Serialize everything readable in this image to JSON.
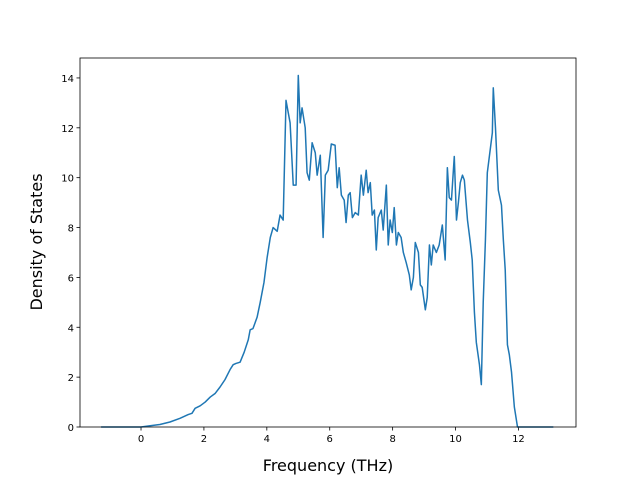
{
  "chart_data": {
    "type": "line",
    "xlabel": "Frequency (THz)",
    "ylabel": "Density of States",
    "x": [
      -1.27,
      0,
      0.29,
      0.6,
      0.92,
      1.24,
      1.5,
      1.62,
      1.72,
      1.88,
      2.04,
      2.2,
      2.36,
      2.51,
      2.67,
      2.83,
      2.93,
      3.02,
      3.15,
      3.28,
      3.41,
      3.47,
      3.56,
      3.69,
      3.79,
      3.91,
      4.01,
      4.11,
      4.2,
      4.33,
      4.42,
      4.52,
      4.61,
      4.74,
      4.84,
      4.93,
      5.0,
      5.06,
      5.12,
      5.22,
      5.28,
      5.35,
      5.44,
      5.54,
      5.6,
      5.7,
      5.79,
      5.86,
      5.95,
      6.05,
      6.17,
      6.24,
      6.3,
      6.37,
      6.46,
      6.52,
      6.59,
      6.65,
      6.72,
      6.81,
      6.91,
      7.0,
      7.07,
      7.16,
      7.22,
      7.29,
      7.35,
      7.42,
      7.48,
      7.54,
      7.64,
      7.7,
      7.8,
      7.86,
      7.92,
      7.99,
      8.05,
      8.12,
      8.18,
      8.27,
      8.34,
      8.43,
      8.53,
      8.59,
      8.66,
      8.72,
      8.82,
      8.88,
      8.94,
      9.04,
      9.1,
      9.17,
      9.23,
      9.29,
      9.39,
      9.48,
      9.58,
      9.67,
      9.74,
      9.8,
      9.87,
      9.96,
      10.03,
      10.09,
      10.15,
      10.22,
      10.28,
      10.38,
      10.47,
      10.53,
      10.6,
      10.66,
      10.76,
      10.82,
      10.88,
      10.95,
      11.01,
      11.11,
      11.17,
      11.2,
      11.27,
      11.36,
      11.46,
      11.52,
      11.58,
      11.65,
      11.71,
      11.78,
      11.87,
      11.97,
      13.11
    ],
    "series": [
      {
        "color": "#1f77b4",
        "values": [
          0,
          0,
          0.05,
          0.1,
          0.2,
          0.35,
          0.5,
          0.55,
          0.75,
          0.85,
          1.0,
          1.2,
          1.35,
          1.6,
          1.9,
          2.3,
          2.5,
          2.55,
          2.6,
          3.0,
          3.5,
          3.9,
          3.95,
          4.4,
          5.0,
          5.8,
          6.8,
          7.6,
          8.0,
          7.85,
          8.5,
          8.3,
          13.1,
          12.2,
          9.7,
          9.7,
          14.1,
          12.2,
          12.8,
          12.0,
          10.2,
          9.9,
          11.4,
          11.0,
          10.1,
          10.9,
          7.6,
          10.1,
          10.3,
          11.35,
          11.3,
          9.6,
          10.4,
          9.3,
          9.1,
          8.2,
          9.3,
          9.4,
          8.4,
          8.6,
          8.5,
          10.1,
          9.3,
          10.3,
          9.4,
          9.8,
          8.5,
          8.7,
          7.1,
          8.4,
          8.7,
          7.9,
          9.7,
          7.3,
          8.3,
          7.8,
          8.8,
          7.3,
          7.8,
          7.6,
          7.0,
          6.6,
          6.1,
          5.5,
          6.0,
          7.4,
          7.0,
          5.7,
          5.6,
          4.7,
          5.2,
          7.3,
          6.5,
          7.3,
          7.0,
          7.3,
          8.1,
          6.7,
          10.4,
          9.2,
          9.1,
          10.85,
          8.3,
          9.0,
          9.8,
          10.1,
          9.9,
          8.3,
          7.4,
          6.7,
          4.6,
          3.4,
          2.5,
          1.7,
          5.0,
          7.5,
          10.2,
          11.2,
          11.8,
          13.6,
          12.0,
          9.5,
          8.9,
          7.5,
          6.3,
          3.3,
          2.9,
          2.2,
          0.8,
          0,
          0
        ]
      }
    ],
    "xlim": [
      -1.94,
      13.83
    ],
    "ylim": [
      0,
      14.8
    ],
    "xticks": [
      0,
      2,
      4,
      6,
      8,
      10,
      12
    ],
    "yticks": [
      0,
      2,
      4,
      6,
      8,
      10,
      12,
      14
    ]
  }
}
